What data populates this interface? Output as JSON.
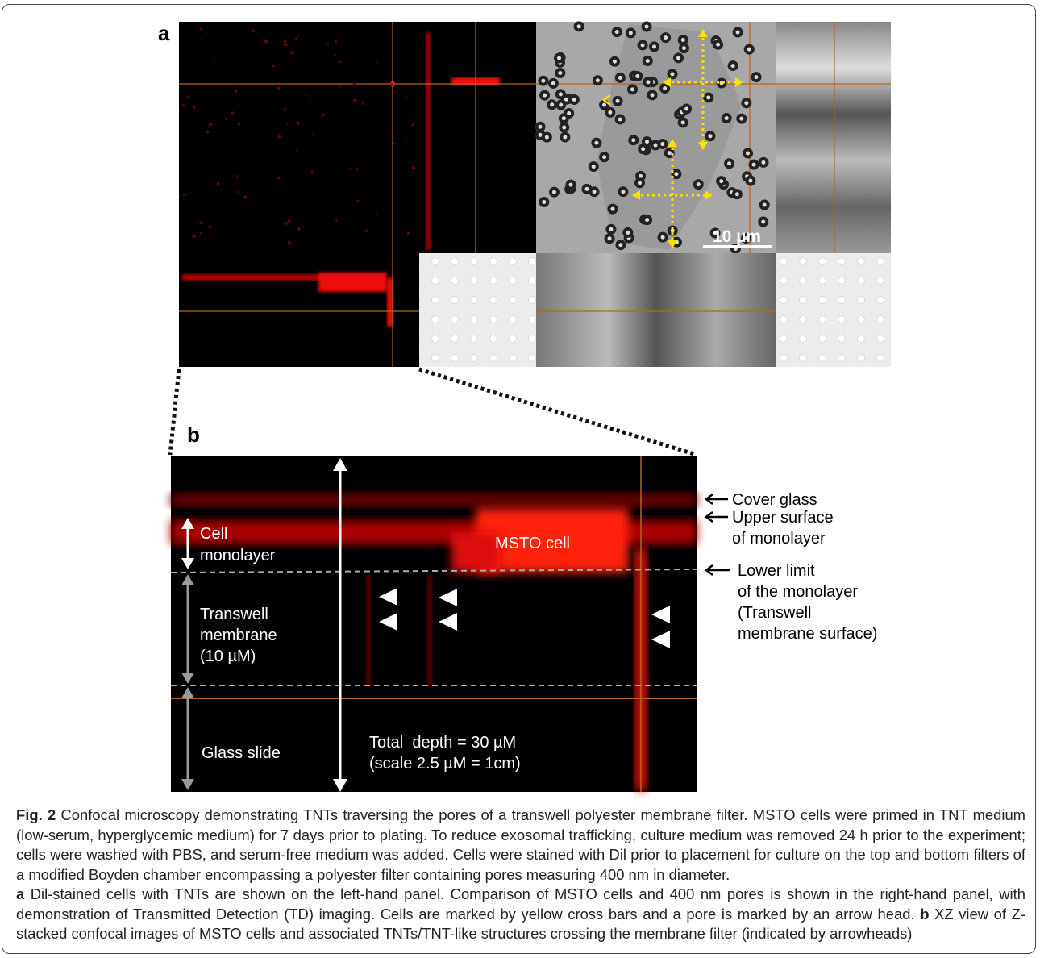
{
  "panel_a": {
    "label": "a",
    "scale_bar": "10 µm"
  },
  "panel_b": {
    "label": "b",
    "annotations": {
      "cell_monolayer": [
        "Cell",
        "monolayer"
      ],
      "msto_cell": "MSTO cell",
      "transwell": [
        "Transwell",
        "membrane",
        "(10 µM)"
      ],
      "glass_slide": "Glass slide",
      "total_depth": [
        "Total  depth = 30 µM",
        "(scale 2.5 µM = 1cm)"
      ]
    },
    "side_labels": {
      "cover_glass": "Cover glass",
      "upper_surface": [
        "Upper surface",
        "of monolayer"
      ],
      "lower_limit": [
        "Lower limit",
        "of the monolayer",
        "(Transwell",
        "membrane surface)"
      ]
    }
  },
  "caption": {
    "figure_label": "Fig. 2",
    "text_main": "Confocal microscopy demonstrating TNTs traversing the pores of a transwell polyester membrane filter. MSTO cells were primed in TNT medium (low-serum, hyperglycemic medium) for 7 days prior to plating. To reduce exosomal trafficking, culture medium was removed 24 h prior to the experiment; cells were washed with PBS, and serum-free medium was added. Cells were stained with Dil prior to placement for culture on the top and bottom filters of a modified Boyden chamber encompassing a polyester filter containing pores measuring 400 nm in diameter.",
    "a_label": "a",
    "text_a": "Dil-stained cells with TNTs are shown on the left-hand panel. Comparison of MSTO cells and 400 nm pores is shown in the right-hand panel, with demonstration of Transmitted Detection (TD) imaging. Cells are marked by yellow cross bars and a pore is marked by an arrow head.",
    "b_label": "b",
    "text_b": "XZ view of Z-stacked confocal images of MSTO cells and associated TNTs/TNT-like structures crossing the membrane filter (indicated by arrowheads)"
  }
}
